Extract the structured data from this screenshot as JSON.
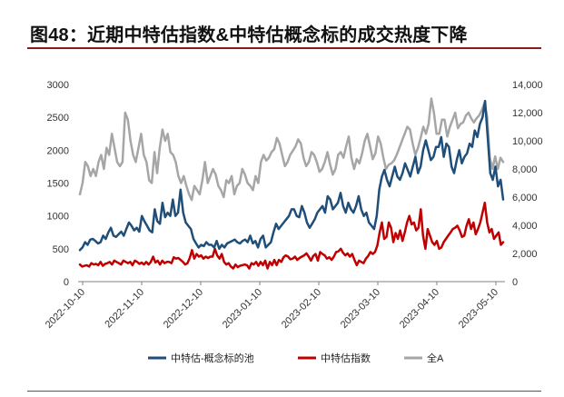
{
  "header": {
    "title": "图48：近期中特估指数&中特估概念标的成交热度下降"
  },
  "chart_data": {
    "type": "line",
    "title": "图48：近期中特估指数&中特估概念标的成交热度下降",
    "xlabel": "",
    "ylabel": "",
    "y2label": "",
    "ylim": [
      0,
      3000
    ],
    "y2lim": [
      0,
      14000
    ],
    "y_ticks": [
      "0",
      "500",
      "1000",
      "1500",
      "2000",
      "2500",
      "3000"
    ],
    "y2_ticks": [
      "0",
      "2,000",
      "4,000",
      "6,000",
      "8,000",
      "10,000",
      "12,000",
      "14,000"
    ],
    "x_ticks": [
      "2022-10-10",
      "2022-11-10",
      "2022-12-10",
      "2023-01-10",
      "2023-02-10",
      "2023-03-10",
      "2023-04-10",
      "2023-05-10"
    ],
    "legend_position": "bottom",
    "series": [
      {
        "name": "中特估-概念标的池",
        "axis": "left",
        "color": "#1f4e79",
        "values": [
          480,
          520,
          600,
          560,
          640,
          650,
          620,
          580,
          600,
          700,
          650,
          750,
          820,
          700,
          680,
          720,
          760,
          700,
          800,
          900,
          850,
          780,
          820,
          760,
          1000,
          920,
          850,
          780,
          750,
          1100,
          920,
          880,
          1200,
          980,
          1050,
          1000,
          1250,
          1000,
          1050,
          1400,
          1050,
          900,
          850,
          800,
          650,
          580,
          520,
          560,
          540,
          600,
          560,
          560,
          520,
          620,
          500,
          560,
          520,
          580,
          600,
          620,
          640,
          600,
          580,
          620,
          640,
          600,
          700,
          580,
          620,
          520,
          650,
          700,
          520,
          560,
          600,
          750,
          880,
          800,
          850,
          900,
          950,
          1000,
          1100,
          1100,
          1000,
          980,
          1150,
          1050,
          900,
          820,
          880,
          950,
          1050,
          1100,
          1150,
          1050,
          1300,
          1250,
          1100,
          1150,
          1200,
          1350,
          1150,
          1050,
          1200,
          1100,
          1050,
          1150,
          1300,
          1100,
          1000,
          1050,
          900,
          850,
          800,
          1000,
          1400,
          1600,
          1700,
          1550,
          1450,
          1600,
          1750,
          1600,
          1550,
          1650,
          1800,
          1700,
          1600,
          1750,
          1900,
          1650,
          1750,
          2000,
          2150,
          2000,
          1850,
          1900,
          2050,
          2050,
          2200,
          1900,
          2100,
          2050,
          1750,
          1650,
          1850,
          2000,
          1800,
          1900,
          1950,
          2100,
          2050,
          2300,
          2200,
          2400,
          2500,
          2750,
          2200,
          1650,
          1550,
          1750,
          1450,
          1550,
          1250
        ]
      },
      {
        "name": "中特估指数",
        "axis": "left",
        "color": "#c00000",
        "values": [
          260,
          230,
          240,
          250,
          230,
          280,
          260,
          270,
          250,
          300,
          240,
          270,
          280,
          300,
          260,
          320,
          300,
          280,
          260,
          320,
          300,
          280,
          300,
          250,
          320,
          300,
          270,
          290,
          260,
          300,
          260,
          300,
          380,
          290,
          320,
          260,
          320,
          280,
          300,
          300,
          280,
          370,
          350,
          360,
          330,
          300,
          260,
          280,
          360,
          480,
          350,
          420,
          380,
          400,
          350,
          380,
          360,
          380,
          380,
          500,
          400,
          350,
          420,
          300,
          260,
          280,
          230,
          200,
          260,
          220,
          240,
          250,
          260,
          250,
          200,
          280,
          260,
          300,
          240,
          300,
          250,
          320,
          200,
          300,
          250,
          330,
          250,
          330,
          300,
          370,
          400,
          380,
          340,
          350,
          380,
          330,
          360,
          380,
          400,
          430,
          380,
          320,
          390,
          420,
          320,
          450,
          420,
          400,
          350,
          370,
          330,
          380,
          450,
          460,
          500,
          440,
          400,
          430,
          380,
          420,
          330,
          250,
          320,
          300,
          280,
          350,
          390,
          450,
          420,
          450,
          550,
          750,
          900,
          650,
          680,
          900,
          820,
          600,
          740,
          650,
          780,
          620,
          750,
          900,
          1000,
          870,
          900,
          780,
          820,
          1100,
          700,
          500,
          800,
          700,
          600,
          560,
          620,
          500,
          520,
          600,
          650,
          700,
          750,
          800,
          820,
          850,
          780,
          680,
          700,
          850,
          950,
          800,
          900,
          720,
          800,
          900,
          1050,
          1200,
          900,
          750,
          800,
          650,
          700,
          750,
          560,
          600
        ]
      },
      {
        "name": "全A",
        "axis": "right",
        "color": "#a6a6a6",
        "values": [
          6200,
          7000,
          8500,
          8200,
          7500,
          8000,
          7500,
          8500,
          9000,
          8000,
          9500,
          9000,
          10500,
          9500,
          8500,
          8200,
          8500,
          12000,
          11500,
          10000,
          9000,
          8500,
          9500,
          10500,
          9000,
          8500,
          7200,
          7000,
          9200,
          7700,
          9500,
          10800,
          10000,
          10500,
          9200,
          9000,
          8500,
          7500,
          7000,
          7500,
          6800,
          6200,
          5800,
          6800,
          6500,
          6200,
          7200,
          8500,
          7000,
          7500,
          8000,
          7600,
          6800,
          6500,
          6000,
          7200,
          7000,
          7500,
          6200,
          6800,
          7000,
          8000,
          7600,
          7000,
          6800,
          6500,
          7500,
          7000,
          8500,
          9000,
          8600,
          8800,
          9200,
          9400,
          10200,
          9800,
          9000,
          8200,
          8500,
          9000,
          9300,
          9600,
          10100,
          9800,
          8800,
          8200,
          8500,
          9200,
          9000,
          8500,
          7800,
          8000,
          8500,
          9200,
          8300,
          7600,
          8000,
          9000,
          9200,
          8800,
          9600,
          10300,
          8800,
          8000,
          8700,
          8400,
          9100,
          10000,
          10500,
          9600,
          8700,
          9100,
          10300,
          9800,
          8800,
          8000,
          8300,
          8400,
          8600,
          9000,
          9500,
          10000,
          10500,
          11000,
          10800,
          9800,
          9000,
          9500,
          10200,
          11000,
          10500,
          11200,
          13000,
          12000,
          10500,
          10500,
          11500,
          11500,
          10300,
          11000,
          11500,
          12000,
          10900,
          11200,
          11300,
          11800,
          12000,
          11600,
          11300,
          11600,
          11800,
          12200,
          12700,
          11700,
          8800,
          8000,
          8900,
          8000,
          8800,
          8500
        ]
      }
    ]
  }
}
